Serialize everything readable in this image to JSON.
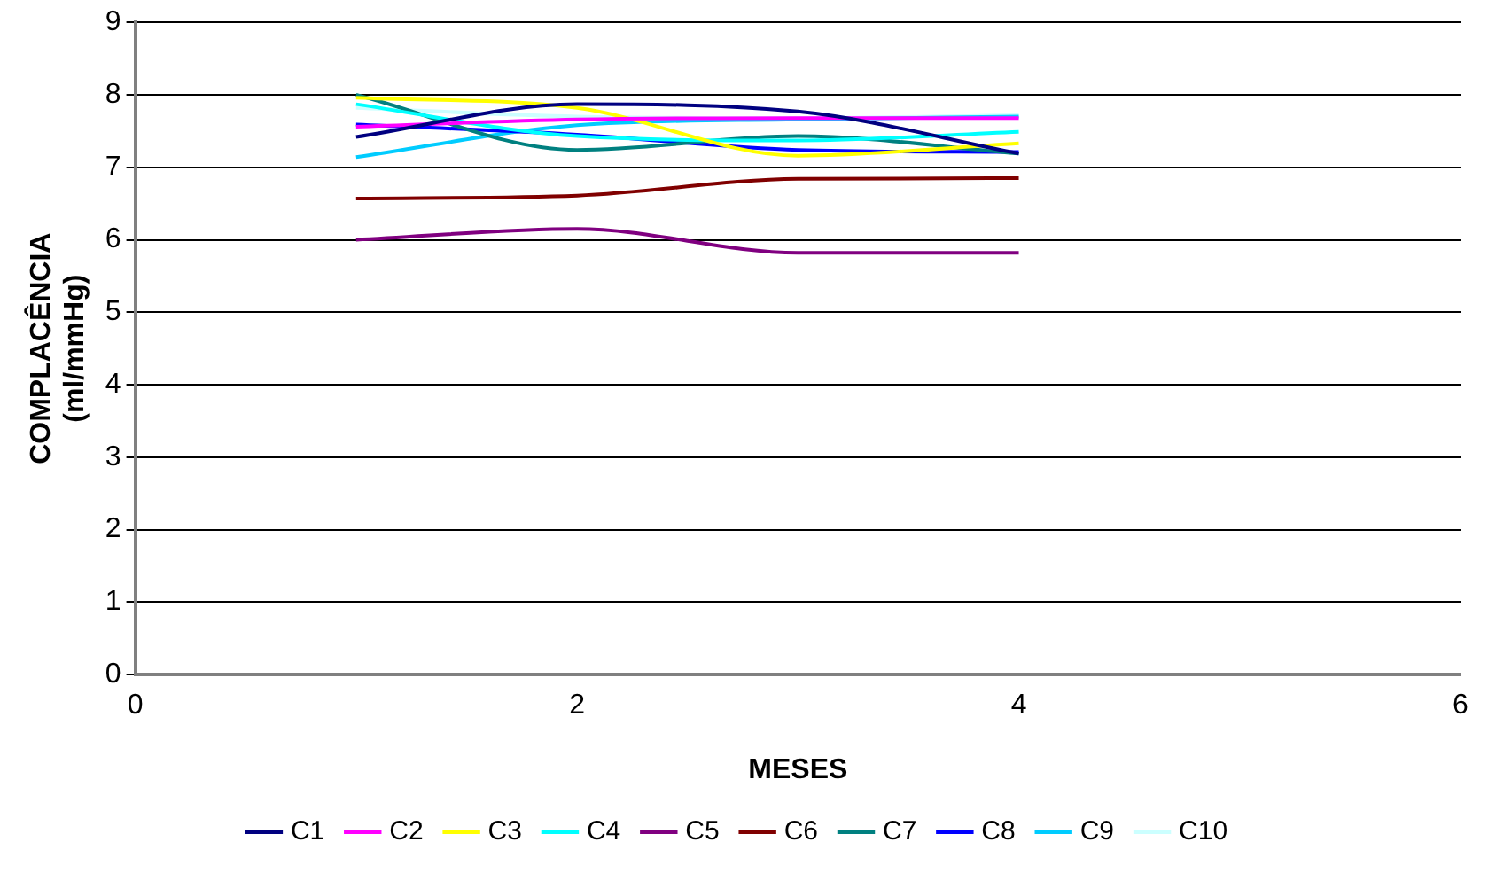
{
  "chart_data": {
    "type": "line",
    "xlabel": "MESES",
    "ylabel": "COMPLACÊNCIA\n(ml/mmHg)",
    "x": [
      1,
      2,
      3,
      4
    ],
    "xlim": [
      0,
      6
    ],
    "xticks": [
      0,
      2,
      4,
      6
    ],
    "ylim": [
      0,
      9
    ],
    "yticks": [
      0,
      1,
      2,
      3,
      4,
      5,
      6,
      7,
      8,
      9
    ],
    "grid": "y",
    "legend": "bottom",
    "marker": "none",
    "line_style": "solid",
    "series": [
      {
        "name": "C1",
        "color": "#000080",
        "values": [
          7.42,
          7.87,
          7.77,
          7.19
        ]
      },
      {
        "name": "C2",
        "color": "#ff00ff",
        "values": [
          7.56,
          7.66,
          7.68,
          7.68
        ]
      },
      {
        "name": "C3",
        "color": "#ffff00",
        "values": [
          7.96,
          7.82,
          7.16,
          7.33
        ]
      },
      {
        "name": "C4",
        "color": "#00ffff",
        "values": [
          7.87,
          7.43,
          7.37,
          7.49
        ]
      },
      {
        "name": "C5",
        "color": "#800080",
        "values": [
          6.0,
          6.15,
          5.82,
          5.82
        ]
      },
      {
        "name": "C6",
        "color": "#800000",
        "values": [
          6.57,
          6.61,
          6.84,
          6.85
        ]
      },
      {
        "name": "C7",
        "color": "#008080",
        "values": [
          8.0,
          7.24,
          7.43,
          7.19
        ]
      },
      {
        "name": "C8",
        "color": "#0000ff",
        "values": [
          7.59,
          7.45,
          7.24,
          7.21
        ]
      },
      {
        "name": "C9",
        "color": "#00ccff",
        "values": [
          7.14,
          7.58,
          7.66,
          7.7
        ]
      },
      {
        "name": "C10",
        "color": "#ccffff",
        "values": [
          7.82,
          7.7,
          7.68,
          7.72
        ]
      }
    ]
  }
}
